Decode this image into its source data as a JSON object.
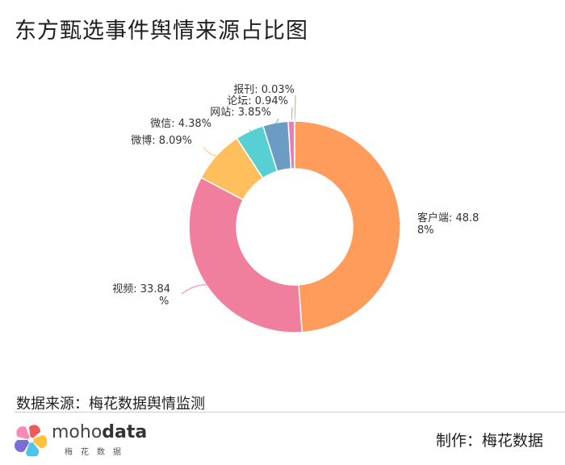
{
  "title": "东方甄选事件舆情来源占比图",
  "source_text": "数据来源：梅花数据舆情监测",
  "maker_text": "制作：梅花数据",
  "logo": {
    "brand_light": "moho",
    "brand_bold": "data",
    "sub": "梅花数据"
  },
  "chart_data": {
    "type": "pie",
    "variant": "donut",
    "title": "东方甄选事件舆情来源占比图",
    "slices": [
      {
        "name": "客户端",
        "value": 48.88,
        "label": [
          "客户端: 48.8",
          "8%"
        ],
        "color": "#ff9b5b"
      },
      {
        "name": "视频",
        "value": 33.84,
        "label": [
          "视频: 33.84",
          "%"
        ],
        "color": "#ef7f9c"
      },
      {
        "name": "微博",
        "value": 8.09,
        "label": [
          "微博: 8.09%"
        ],
        "color": "#ffbf5c"
      },
      {
        "name": "微信",
        "value": 4.38,
        "label": [
          "微信: 4.38%"
        ],
        "color": "#58cfd3"
      },
      {
        "name": "网站",
        "value": 3.85,
        "label": [
          "网站: 3.85%"
        ],
        "color": "#6a9cc6"
      },
      {
        "name": "论坛",
        "value": 0.94,
        "label": [
          "论坛: 0.94%"
        ],
        "color": "#f07ab9"
      },
      {
        "name": "报刊",
        "value": 0.03,
        "label": [
          "报刊: 0.03%"
        ],
        "color": "#8bc26a"
      }
    ]
  }
}
